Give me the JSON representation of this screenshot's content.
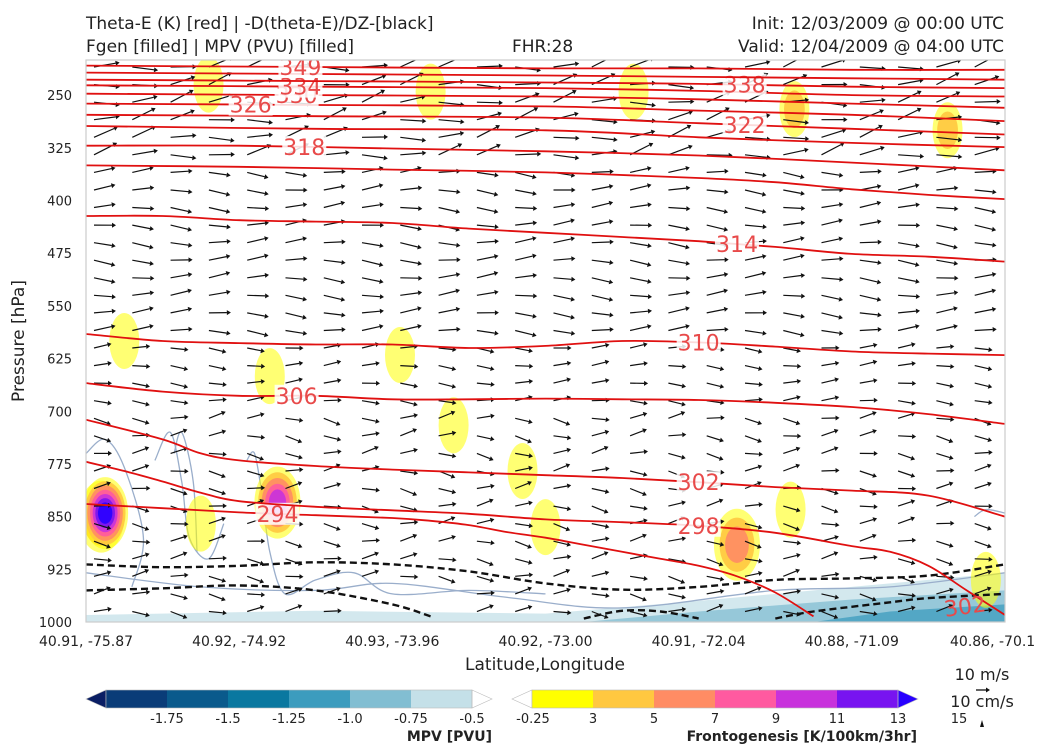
{
  "header": {
    "title_line1": "Theta-E (K) [red] | -D(theta-E)/DZ-[black]",
    "title_line2": "Fgen [filled] | MPV (PVU) [filled]",
    "fhr": "FHR:28",
    "init": "Init: 12/03/2009 @ 00:00 UTC",
    "valid": "Valid: 12/04/2009 @ 04:00 UTC"
  },
  "chart_data": {
    "type": "cross-section",
    "xlabel": "Latitude,Longitude",
    "ylabel": "Pressure [hPa]",
    "x_ticks": [
      "40.91, -75.87",
      "40.92, -74.92",
      "40.93, -73.96",
      "40.92, -73.00",
      "40.91, -72.04",
      "40.88, -71.09",
      "40.86, -70.1"
    ],
    "y_ticks": [
      250,
      325,
      400,
      475,
      550,
      625,
      700,
      775,
      850,
      925,
      1000
    ],
    "ylim": [
      1000,
      200
    ],
    "y_scale": "linear (inverted)",
    "grid": false,
    "theta_e_color": "#e01010",
    "theta_e_contours": [
      {
        "value": 294,
        "label": "294",
        "points": [
          [
            0,
            832
          ],
          [
            2,
            838
          ],
          [
            4,
            844
          ],
          [
            6,
            848
          ],
          [
            8,
            852
          ],
          [
            9,
            856
          ],
          [
            10,
            862
          ],
          [
            11,
            872
          ],
          [
            12,
            880
          ],
          [
            13,
            890
          ],
          [
            14,
            900
          ],
          [
            15,
            910
          ],
          [
            16,
            920
          ],
          [
            17,
            935
          ],
          [
            18,
            958
          ],
          [
            19,
            992
          ]
        ]
      },
      {
        "value": 298,
        "label": "298",
        "points": [
          [
            0,
            772
          ],
          [
            1,
            785
          ],
          [
            2,
            800
          ],
          [
            3,
            816
          ],
          [
            4,
            828
          ],
          [
            6,
            836
          ],
          [
            8,
            841
          ],
          [
            10,
            846
          ],
          [
            12,
            854
          ],
          [
            14,
            858
          ],
          [
            16,
            863
          ],
          [
            18,
            873
          ],
          [
            20,
            892
          ],
          [
            21,
            900
          ],
          [
            22,
            920
          ],
          [
            23,
            955
          ],
          [
            24,
            990
          ]
        ]
      },
      {
        "value": 302,
        "label": "302",
        "points": [
          [
            0,
            712
          ],
          [
            2,
            740
          ],
          [
            3,
            760
          ],
          [
            4,
            770
          ],
          [
            6,
            778
          ],
          [
            8,
            783
          ],
          [
            10,
            787
          ],
          [
            12,
            791
          ],
          [
            14,
            795
          ],
          [
            16,
            801
          ],
          [
            18,
            808
          ],
          [
            20,
            813
          ],
          [
            22,
            820
          ],
          [
            24,
            850
          ]
        ]
      },
      {
        "value": 306,
        "label": "306",
        "points": [
          [
            0,
            660
          ],
          [
            2,
            672
          ],
          [
            4,
            678
          ],
          [
            6,
            678
          ],
          [
            8,
            683
          ],
          [
            10,
            683
          ],
          [
            12,
            682
          ],
          [
            14,
            683
          ],
          [
            16,
            684
          ],
          [
            18,
            688
          ],
          [
            20,
            694
          ],
          [
            22,
            704
          ],
          [
            24,
            718
          ]
        ]
      },
      {
        "value": 310,
        "label": "310",
        "points": [
          [
            0,
            590
          ],
          [
            2,
            600
          ],
          [
            4,
            603
          ],
          [
            6,
            605
          ],
          [
            8,
            605
          ],
          [
            10,
            610
          ],
          [
            12,
            607
          ],
          [
            14,
            600
          ],
          [
            16,
            602
          ],
          [
            18,
            608
          ],
          [
            20,
            615
          ],
          [
            22,
            618
          ],
          [
            24,
            620
          ]
        ]
      },
      {
        "value": 314,
        "label": "314",
        "points": [
          [
            0,
            422
          ],
          [
            2,
            422
          ],
          [
            4,
            428
          ],
          [
            6,
            430
          ],
          [
            8,
            432
          ],
          [
            10,
            440
          ],
          [
            12,
            446
          ],
          [
            14,
            452
          ],
          [
            16,
            458
          ],
          [
            18,
            466
          ],
          [
            20,
            476
          ],
          [
            22,
            480
          ],
          [
            24,
            487
          ]
        ]
      },
      {
        "value": 316,
        "label": "",
        "points": [
          [
            0,
            350
          ],
          [
            4,
            352
          ],
          [
            8,
            356
          ],
          [
            12,
            360
          ],
          [
            16,
            368
          ],
          [
            18,
            374
          ],
          [
            20,
            384
          ],
          [
            22,
            392
          ],
          [
            24,
            398
          ]
        ]
      },
      {
        "value": 318,
        "label": "318",
        "points": [
          [
            0,
            322
          ],
          [
            4,
            322
          ],
          [
            8,
            326
          ],
          [
            12,
            330
          ],
          [
            16,
            336
          ],
          [
            20,
            346
          ],
          [
            24,
            357
          ]
        ]
      },
      {
        "value": 320,
        "label": "",
        "points": [
          [
            0,
            294
          ],
          [
            6,
            298
          ],
          [
            12,
            300
          ],
          [
            16,
            310
          ],
          [
            20,
            318
          ],
          [
            24,
            324
          ]
        ]
      },
      {
        "value": 322,
        "label": "322",
        "points": [
          [
            0,
            278
          ],
          [
            6,
            280
          ],
          [
            12,
            282
          ],
          [
            16,
            290
          ],
          [
            20,
            298
          ],
          [
            24,
            306
          ]
        ]
      },
      {
        "value": 326,
        "label": "326",
        "points": [
          [
            0,
            262
          ],
          [
            6,
            264
          ],
          [
            12,
            266
          ],
          [
            16,
            272
          ],
          [
            20,
            278
          ],
          [
            24,
            287
          ]
        ]
      },
      {
        "value": 330,
        "label": "330",
        "points": [
          [
            0,
            248
          ],
          [
            6,
            250
          ],
          [
            12,
            252
          ],
          [
            16,
            256
          ],
          [
            20,
            262
          ],
          [
            24,
            268
          ]
        ]
      },
      {
        "value": 334,
        "label": "334",
        "points": [
          [
            0,
            236
          ],
          [
            6,
            238
          ],
          [
            12,
            240
          ],
          [
            16,
            244
          ],
          [
            20,
            250
          ],
          [
            24,
            252
          ]
        ]
      },
      {
        "value": 338,
        "label": "338",
        "points": [
          [
            0,
            228
          ],
          [
            6,
            230
          ],
          [
            12,
            232
          ],
          [
            16,
            234
          ],
          [
            20,
            238
          ],
          [
            24,
            240
          ]
        ]
      },
      {
        "value": 342,
        "label": "",
        "points": [
          [
            0,
            218
          ],
          [
            6,
            220
          ],
          [
            12,
            222
          ],
          [
            16,
            224
          ],
          [
            20,
            226
          ],
          [
            24,
            228
          ]
        ]
      },
      {
        "value": 349,
        "label": "349",
        "points": [
          [
            0,
            208
          ],
          [
            6,
            210
          ],
          [
            12,
            212
          ],
          [
            16,
            212
          ],
          [
            20,
            214
          ],
          [
            24,
            214
          ]
        ]
      }
    ],
    "dtheta_e_dz_color": "#111111",
    "dtheta_e_dz_contours": [
      {
        "points": [
          [
            0,
            918
          ],
          [
            2,
            922
          ],
          [
            4,
            920
          ],
          [
            6,
            915
          ],
          [
            8,
            918
          ],
          [
            10,
            928
          ],
          [
            12,
            945
          ],
          [
            14,
            954
          ],
          [
            16,
            950
          ],
          [
            18,
            940
          ],
          [
            20,
            938
          ],
          [
            22,
            934
          ],
          [
            24,
            918
          ]
        ]
      },
      {
        "points": [
          [
            0,
            955
          ],
          [
            2,
            952
          ],
          [
            4,
            948
          ],
          [
            6,
            955
          ],
          [
            8,
            975
          ],
          [
            9,
            992
          ]
        ]
      },
      {
        "points": [
          [
            13,
            995
          ],
          [
            14,
            984
          ],
          [
            15,
            985
          ],
          [
            16,
            995
          ]
        ]
      },
      {
        "points": [
          [
            18,
            995
          ],
          [
            19,
            985
          ],
          [
            21,
            972
          ],
          [
            22,
            966
          ],
          [
            24,
            960
          ]
        ]
      }
    ],
    "fgen_colorbar": {
      "label": "Frontogenesis [K/100km/3hr]",
      "ticks": [
        "3",
        "5",
        "7",
        "9",
        "11",
        "13",
        "15"
      ],
      "colors": [
        "#ffffff",
        "#ffff00",
        "#ffc840",
        "#ff8c64",
        "#ff5aa0",
        "#c832dc",
        "#7814f0",
        "#2800ff"
      ]
    },
    "mpv_colorbar": {
      "label": "MPV [PVU]",
      "ticks": [
        "-1.75",
        "-1.5",
        "-1.25",
        "-1.0",
        "-0.75",
        "-0.5",
        "-0.25"
      ],
      "colors": [
        "#0a1e64",
        "#0a3c78",
        "#0a5a8c",
        "#0a78a0",
        "#3c9cbe",
        "#82bed2",
        "#c4e0e8",
        "#ffffff"
      ]
    },
    "fgen_blobs": [
      {
        "x": 0.4,
        "y": 850,
        "level": 4
      },
      {
        "x": 0.5,
        "y": 845,
        "level": 7
      },
      {
        "x": 5.0,
        "y": 830,
        "level": 5
      },
      {
        "x": 17.0,
        "y": 890,
        "level": 3
      },
      {
        "x": 1.0,
        "y": 600,
        "level": 1
      },
      {
        "x": 4.8,
        "y": 650,
        "level": 1
      },
      {
        "x": 8.2,
        "y": 620,
        "level": 1
      },
      {
        "x": 9.6,
        "y": 720,
        "level": 1
      },
      {
        "x": 11.4,
        "y": 785,
        "level": 1
      },
      {
        "x": 12.0,
        "y": 865,
        "level": 1
      },
      {
        "x": 3.0,
        "y": 860,
        "level": 1
      },
      {
        "x": 18.4,
        "y": 840,
        "level": 1
      },
      {
        "x": 23.5,
        "y": 940,
        "level": 1
      },
      {
        "x": 3.2,
        "y": 235,
        "level": 1
      },
      {
        "x": 9.0,
        "y": 245,
        "level": 1
      },
      {
        "x": 14.3,
        "y": 245,
        "level": 1
      },
      {
        "x": 18.5,
        "y": 270,
        "level": 2
      },
      {
        "x": 22.5,
        "y": 300,
        "level": 2
      }
    ],
    "wind_reference": {
      "horizontal": "10 m/s",
      "vertical": "10 cm/s"
    }
  }
}
